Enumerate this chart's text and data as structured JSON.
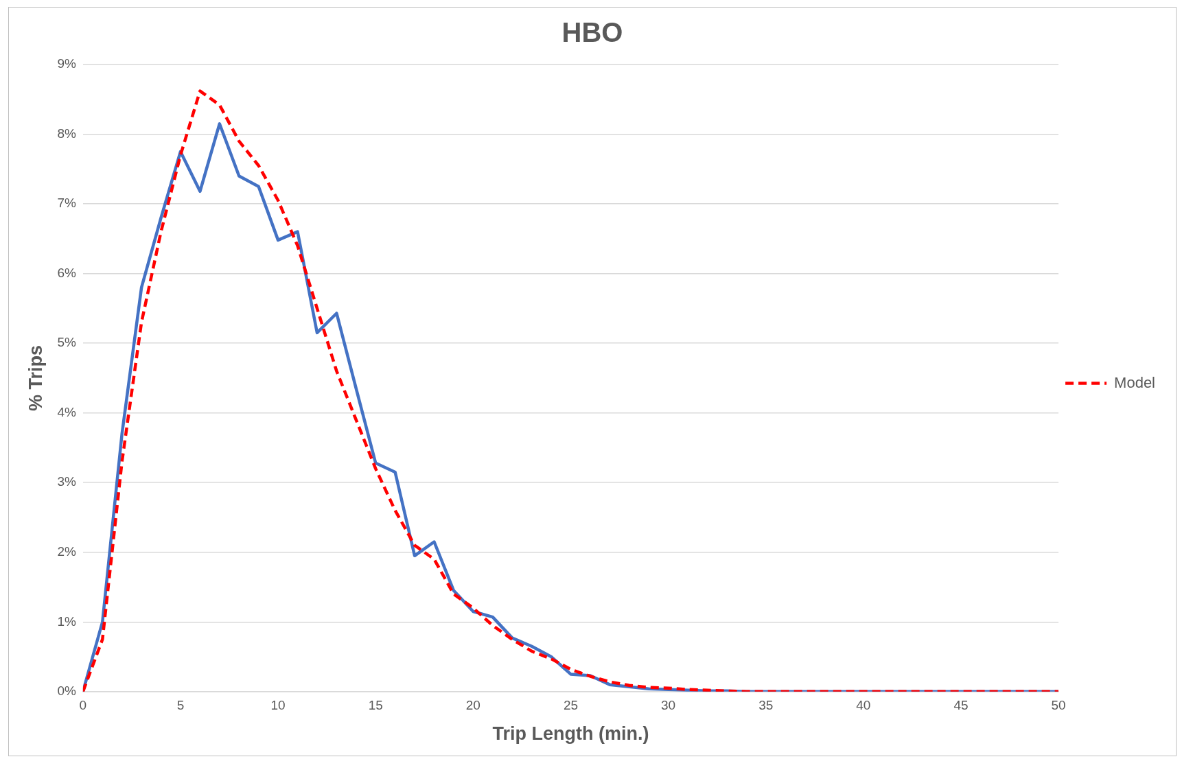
{
  "chart_data": {
    "type": "line",
    "title": "HBO",
    "xlabel": "Trip Length (min.)",
    "ylabel": "% Trips",
    "x": [
      0,
      1,
      2,
      3,
      4,
      5,
      6,
      7,
      8,
      9,
      10,
      11,
      12,
      13,
      14,
      15,
      16,
      17,
      18,
      19,
      20,
      21,
      22,
      23,
      24,
      25,
      26,
      27,
      28,
      29,
      30,
      31,
      32,
      33,
      34,
      35,
      36,
      37,
      38,
      39,
      40,
      41,
      42,
      43,
      44,
      45,
      46,
      47,
      48,
      49,
      50
    ],
    "series": [
      {
        "color": "#4472c4",
        "line_style": "solid",
        "values": [
          0,
          1.0,
          3.7,
          5.8,
          6.8,
          7.75,
          7.18,
          8.15,
          7.4,
          7.25,
          6.48,
          6.6,
          5.15,
          5.43,
          4.35,
          3.28,
          3.15,
          1.95,
          2.15,
          1.45,
          1.15,
          1.07,
          0.77,
          0.65,
          0.5,
          0.25,
          0.23,
          0.1,
          0.07,
          0.04,
          0.03,
          0.02,
          0.01,
          0.01,
          0,
          0,
          0,
          0,
          0,
          0,
          0,
          0,
          0,
          0,
          0,
          0,
          0,
          0,
          0,
          0,
          0
        ]
      },
      {
        "name": "Model",
        "color": "#ff0000",
        "line_style": "dashed",
        "values": [
          0,
          0.75,
          3.3,
          5.3,
          6.6,
          7.7,
          8.62,
          8.42,
          7.9,
          7.55,
          7.05,
          6.4,
          5.5,
          4.6,
          3.9,
          3.2,
          2.6,
          2.1,
          1.9,
          1.4,
          1.2,
          0.95,
          0.75,
          0.58,
          0.47,
          0.32,
          0.22,
          0.14,
          0.09,
          0.06,
          0.05,
          0.03,
          0.02,
          0.01,
          0,
          0,
          0,
          0,
          0,
          0,
          0,
          0,
          0,
          0,
          0,
          0,
          0,
          0,
          0,
          0,
          0
        ]
      }
    ],
    "xlim": [
      0,
      50
    ],
    "xticks": [
      0,
      5,
      10,
      15,
      20,
      25,
      30,
      35,
      40,
      45,
      50
    ],
    "ylim": [
      0,
      9
    ],
    "yticks": [
      {
        "value": 0,
        "label": "0%"
      },
      {
        "value": 1,
        "label": "1%"
      },
      {
        "value": 2,
        "label": "2%"
      },
      {
        "value": 3,
        "label": "3%"
      },
      {
        "value": 4,
        "label": "4%"
      },
      {
        "value": 5,
        "label": "5%"
      },
      {
        "value": 6,
        "label": "6%"
      },
      {
        "value": 7,
        "label": "7%"
      },
      {
        "value": 8,
        "label": "8%"
      },
      {
        "value": 9,
        "label": "9%"
      }
    ],
    "grid": "y",
    "legend": "right",
    "marker": "none"
  }
}
